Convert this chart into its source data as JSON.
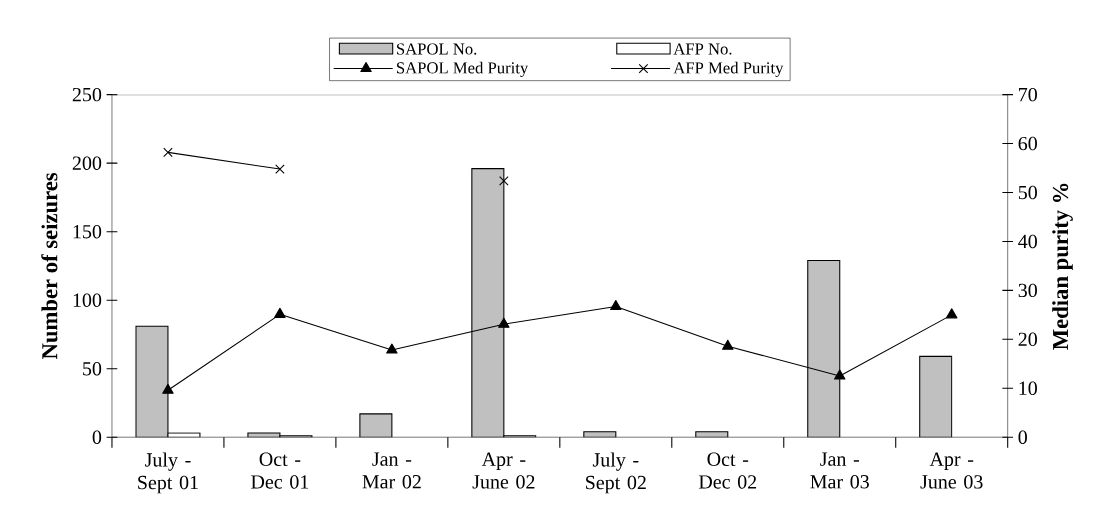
{
  "chart_data": {
    "type": "bar",
    "categories": [
      "July - Sept 01",
      "Oct - Dec 01",
      "Jan - Mar 02",
      "Apr - June 02",
      "July - Sept 02",
      "Oct - Dec 02",
      "Jan - Mar 03",
      "Apr - June 03"
    ],
    "series": [
      {
        "name": "SAPOL No.",
        "color": "#c0c0c0",
        "values": [
          81,
          3,
          17,
          196,
          4,
          4,
          129,
          59
        ]
      },
      {
        "name": "AFP No.",
        "color": "#ffffff",
        "values": [
          3,
          1,
          null,
          1,
          null,
          null,
          null,
          null
        ]
      },
      {
        "name": "SAPOL Med Purity",
        "type": "line",
        "axis": "y2",
        "marker": "triangle",
        "color": "#000000",
        "values": [
          9.6,
          25.1,
          17.8,
          23.1,
          26.7,
          18.6,
          12.5,
          25
        ]
      },
      {
        "name": "AFP Med Purity",
        "type": "line",
        "axis": "y2",
        "marker": "cross",
        "color": "#000000",
        "values": [
          58.2,
          54.8,
          null,
          52.4,
          null,
          null,
          null,
          null
        ]
      }
    ],
    "ylabel": "Number of seizures",
    "y2label": "Median purity %",
    "ylim": [
      0,
      250
    ],
    "yticks": [
      0,
      50,
      100,
      150,
      200,
      250
    ],
    "y2lim": [
      0,
      70
    ],
    "y2ticks": [
      0,
      10,
      20,
      30,
      40,
      50,
      60,
      70
    ],
    "legend": "top",
    "grid": false
  }
}
